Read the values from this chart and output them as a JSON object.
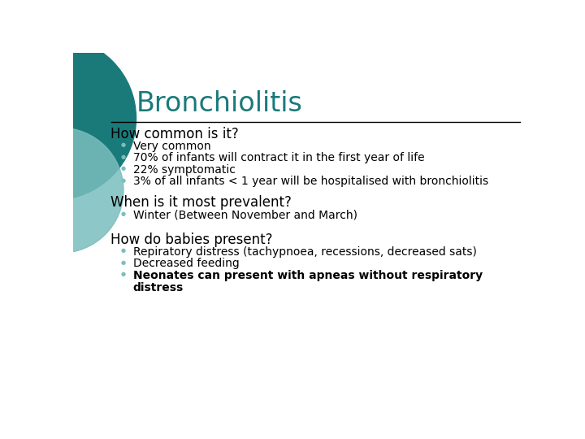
{
  "title": "Bronchiolitis",
  "title_color": "#1A7A7A",
  "bg_color": "#FFFFFF",
  "line_color": "#000000",
  "section1_heading": "How common is it?",
  "section1_bullets": [
    "Very common",
    "70% of infants will contract it in the first year of life",
    "22% symptomatic",
    "3% of all infants < 1 year will be hospitalised with bronchiolitis"
  ],
  "section2_heading": "When is it most prevalent?",
  "section2_bullets": [
    "Winter (Between November and March)"
  ],
  "section3_heading": "How do babies present?",
  "section3_bullets_normal": [
    "Repiratory distress (tachypnoea, recessions, decreased sats)",
    "Decreased feeding"
  ],
  "section3_bullet_bold_line1": "Neonates can present with apneas without respiratory",
  "section3_bullet_bold_line2": "distress",
  "bullet_color": "#7ABEBE",
  "heading_color": "#000000",
  "body_color": "#000000",
  "circle_color1": "#1A7A7A",
  "circle_color2": "#7ABEBE",
  "heading_fontsize": 12,
  "body_fontsize": 10,
  "title_fontsize": 24
}
